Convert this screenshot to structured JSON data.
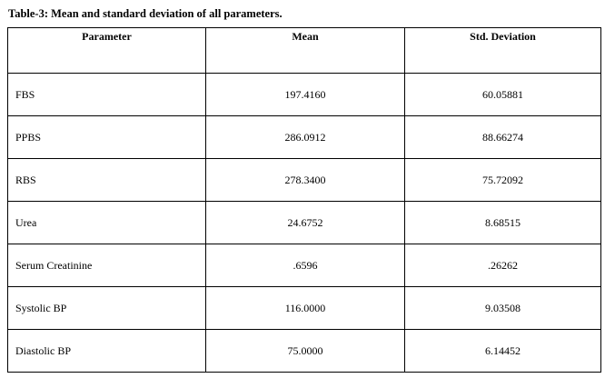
{
  "caption": "Table-3:  Mean and standard deviation of all parameters.",
  "table": {
    "headers": [
      "Parameter",
      "Mean",
      "Std. Deviation"
    ],
    "rows": [
      {
        "parameter": "FBS",
        "mean": "197.4160",
        "std": "60.05881"
      },
      {
        "parameter": "PPBS",
        "mean": "286.0912",
        "std": "88.66274"
      },
      {
        "parameter": "RBS",
        "mean": "278.3400",
        "std": "75.72092"
      },
      {
        "parameter": "Urea",
        "mean": "24.6752",
        "std": "8.68515"
      },
      {
        "parameter": "Serum Creatinine",
        "mean": ".6596",
        "std": ".26262"
      },
      {
        "parameter": "Systolic BP",
        "mean": "116.0000",
        "std": "9.03508"
      },
      {
        "parameter": "Diastolic BP",
        "mean": "75.0000",
        "std": "6.14452"
      }
    ]
  }
}
